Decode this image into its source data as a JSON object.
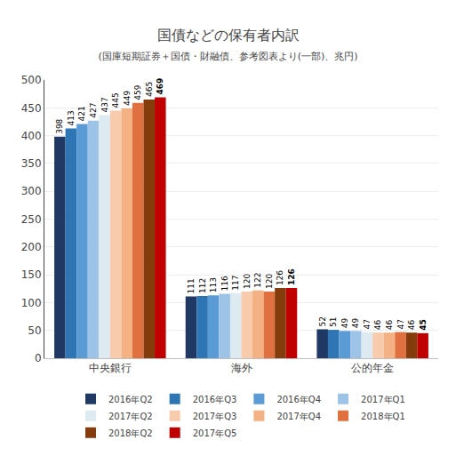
{
  "chart_data": {
    "type": "bar",
    "title": "国債などの保有者内訳",
    "subtitle": "(国庫短期証券＋国債・財融債、参考図表より(一部)、兆円)",
    "categories": [
      "中央銀行",
      "海外",
      "公的年金"
    ],
    "series": [
      {
        "name": "2016年Q2",
        "color": "#1F3864",
        "values": [
          398,
          111,
          52
        ]
      },
      {
        "name": "2016年Q3",
        "color": "#2E75B6",
        "values": [
          413,
          112,
          51
        ]
      },
      {
        "name": "2016年Q4",
        "color": "#5B9BD5",
        "values": [
          421,
          113,
          49
        ]
      },
      {
        "name": "2017年Q1",
        "color": "#9DC3E6",
        "values": [
          427,
          116,
          49
        ]
      },
      {
        "name": "2017年Q2",
        "color": "#DEEAF1",
        "values": [
          437,
          117,
          47
        ]
      },
      {
        "name": "2017年Q3",
        "color": "#F8CBAD",
        "values": [
          445,
          120,
          46
        ]
      },
      {
        "name": "2017年Q4",
        "color": "#F4B183",
        "values": [
          449,
          122,
          46
        ]
      },
      {
        "name": "2018年Q1",
        "color": "#E07040",
        "values": [
          459,
          120,
          47
        ]
      },
      {
        "name": "2018年Q2",
        "color": "#843C0C",
        "values": [
          465,
          126,
          46
        ]
      },
      {
        "name": "2017年Q5",
        "color": "#C00000",
        "values": [
          469,
          126,
          45
        ]
      }
    ],
    "ylim": [
      0,
      500
    ],
    "yticks": [
      0,
      50,
      100,
      150,
      200,
      250,
      300,
      350,
      400,
      450,
      500
    ],
    "grid": true,
    "data_labels": true,
    "legend": "bottom"
  }
}
